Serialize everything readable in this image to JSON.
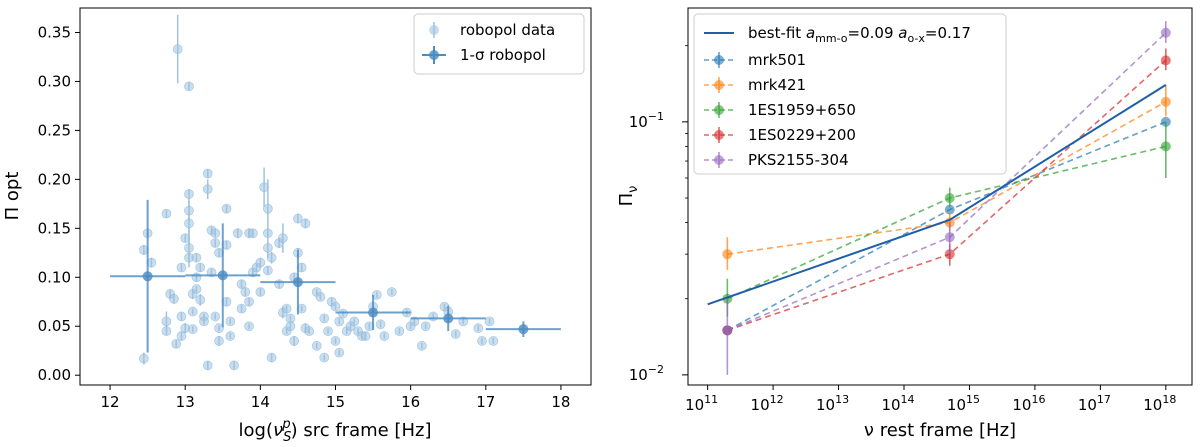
{
  "chart_data": [
    {
      "type": "scatter",
      "xlabel_main": "log(",
      "xlabel_nu": "ν",
      "xlabel_sub": "S",
      "xlabel_sup": "p",
      "xlabel_tail": ") src frame [Hz]",
      "ylabel": "Π opt",
      "xlim": [
        11.6,
        18.4
      ],
      "ylim": [
        -0.01,
        0.375
      ],
      "xticks": [
        12,
        13,
        14,
        15,
        16,
        17,
        18
      ],
      "xtick_labels": [
        "12",
        "13",
        "14",
        "15",
        "16",
        "17",
        "18"
      ],
      "yticks": [
        0.0,
        0.05,
        0.1,
        0.15,
        0.2,
        0.25,
        0.3,
        0.35
      ],
      "ytick_labels": [
        "0.00",
        "0.05",
        "0.10",
        "0.15",
        "0.20",
        "0.25",
        "0.30",
        "0.35"
      ],
      "legend": [
        {
          "label": "robopol data",
          "color": "#9fc3e0"
        },
        {
          "label": "1-σ robopol",
          "color": "#4a8bc2"
        }
      ],
      "scatter": [
        [
          12.45,
          0.017,
          0.006
        ],
        [
          12.45,
          0.128,
          0.005
        ],
        [
          12.5,
          0.145,
          0.005
        ],
        [
          12.55,
          0.115,
          0.005
        ],
        [
          12.75,
          0.165,
          0.004
        ],
        [
          12.75,
          0.055,
          0.01
        ],
        [
          12.75,
          0.045,
          0.004
        ],
        [
          12.8,
          0.083,
          0.004
        ],
        [
          12.85,
          0.078,
          0.005
        ],
        [
          12.9,
          0.333,
          0.035
        ],
        [
          12.88,
          0.032,
          0.004
        ],
        [
          12.95,
          0.11,
          0.004
        ],
        [
          12.95,
          0.06,
          0.004
        ],
        [
          12.95,
          0.04,
          0.004
        ],
        [
          13.0,
          0.048,
          0.005
        ],
        [
          13.0,
          0.14,
          0.004
        ],
        [
          13.05,
          0.295,
          0.004
        ],
        [
          13.05,
          0.185,
          0.005
        ],
        [
          13.05,
          0.168,
          0.01
        ],
        [
          13.05,
          0.155,
          0.025
        ],
        [
          13.05,
          0.13,
          0.02
        ],
        [
          13.05,
          0.12,
          0.005
        ],
        [
          13.1,
          0.083,
          0.005
        ],
        [
          13.1,
          0.065,
          0.003
        ],
        [
          13.1,
          0.047,
          0.003
        ],
        [
          13.15,
          0.12,
          0.004
        ],
        [
          13.15,
          0.1,
          0.004
        ],
        [
          13.15,
          0.088,
          0.003
        ],
        [
          13.2,
          0.11,
          0.004
        ],
        [
          13.2,
          0.077,
          0.006
        ],
        [
          13.25,
          0.06,
          0.003
        ],
        [
          13.25,
          0.055,
          0.003
        ],
        [
          13.3,
          0.206,
          0.004
        ],
        [
          13.3,
          0.19,
          0.01
        ],
        [
          13.35,
          0.148,
          0.004
        ],
        [
          13.35,
          0.105,
          0.004
        ],
        [
          13.4,
          0.145,
          0.004
        ],
        [
          13.4,
          0.135,
          0.004
        ],
        [
          13.4,
          0.06,
          0.003
        ],
        [
          13.45,
          0.125,
          0.004
        ],
        [
          13.45,
          0.048,
          0.003
        ],
        [
          13.45,
          0.035,
          0.005
        ],
        [
          13.3,
          0.01,
          0.004
        ],
        [
          13.55,
          0.17,
          0.004
        ],
        [
          13.55,
          0.133,
          0.004
        ],
        [
          13.55,
          0.075,
          0.004
        ],
        [
          13.6,
          0.055,
          0.003
        ],
        [
          13.6,
          0.04,
          0.003
        ],
        [
          13.65,
          0.01,
          0.004
        ],
        [
          13.7,
          0.145,
          0.005
        ],
        [
          13.75,
          0.093,
          0.004
        ],
        [
          13.75,
          0.068,
          0.004
        ],
        [
          13.8,
          0.085,
          0.004
        ],
        [
          13.85,
          0.075,
          0.004
        ],
        [
          13.85,
          0.05,
          0.003
        ],
        [
          13.85,
          0.145,
          0.005
        ],
        [
          13.9,
          0.105,
          0.004
        ],
        [
          13.9,
          0.145,
          0.004
        ],
        [
          13.95,
          0.11,
          0.004
        ],
        [
          14.0,
          0.085,
          0.004
        ],
        [
          14.0,
          0.115,
          0.005
        ],
        [
          14.1,
          0.145,
          0.004
        ],
        [
          14.05,
          0.192,
          0.02
        ],
        [
          14.1,
          0.17,
          0.03
        ],
        [
          14.1,
          0.107,
          0.004
        ],
        [
          14.1,
          0.13,
          0.01
        ],
        [
          14.15,
          0.12,
          0.006
        ],
        [
          14.15,
          0.018,
          0.004
        ],
        [
          14.25,
          0.135,
          0.005
        ],
        [
          14.3,
          0.14,
          0.015
        ],
        [
          14.25,
          0.093,
          0.004
        ],
        [
          14.3,
          0.064,
          0.006
        ],
        [
          14.35,
          0.068,
          0.003
        ],
        [
          14.35,
          0.045,
          0.003
        ],
        [
          14.4,
          0.058,
          0.003
        ],
        [
          14.4,
          0.05,
          0.003
        ],
        [
          14.45,
          0.1,
          0.004
        ],
        [
          14.45,
          0.035,
          0.005
        ],
        [
          14.5,
          0.16,
          0.005
        ],
        [
          14.5,
          0.125,
          0.005
        ],
        [
          14.55,
          0.11,
          0.004
        ],
        [
          14.55,
          0.068,
          0.003
        ],
        [
          14.6,
          0.155,
          0.005
        ],
        [
          14.6,
          0.048,
          0.005
        ],
        [
          14.65,
          0.045,
          0.003
        ],
        [
          14.75,
          0.03,
          0.003
        ],
        [
          14.75,
          0.085,
          0.003
        ],
        [
          14.8,
          0.08,
          0.003
        ],
        [
          14.85,
          0.058,
          0.003
        ],
        [
          14.9,
          0.045,
          0.003
        ],
        [
          14.85,
          0.018,
          0.003
        ],
        [
          14.95,
          0.075,
          0.004
        ],
        [
          15.0,
          0.07,
          0.003
        ],
        [
          15.0,
          0.035,
          0.003
        ],
        [
          15.05,
          0.023,
          0.003
        ],
        [
          15.05,
          0.055,
          0.003
        ],
        [
          15.1,
          0.063,
          0.003
        ],
        [
          15.15,
          0.045,
          0.003
        ],
        [
          15.2,
          0.05,
          0.003
        ],
        [
          15.25,
          0.055,
          0.003
        ],
        [
          15.3,
          0.045,
          0.003
        ],
        [
          15.35,
          0.04,
          0.003
        ],
        [
          15.4,
          0.04,
          0.004
        ],
        [
          15.45,
          0.05,
          0.003
        ],
        [
          15.5,
          0.07,
          0.003
        ],
        [
          15.55,
          0.082,
          0.003
        ],
        [
          15.6,
          0.052,
          0.003
        ],
        [
          15.65,
          0.04,
          0.003
        ],
        [
          15.75,
          0.085,
          0.003
        ],
        [
          15.85,
          0.045,
          0.003
        ],
        [
          15.95,
          0.064,
          0.003
        ],
        [
          16.0,
          0.05,
          0.003
        ],
        [
          16.05,
          0.055,
          0.003
        ],
        [
          16.15,
          0.03,
          0.003
        ],
        [
          16.2,
          0.05,
          0.003
        ],
        [
          16.3,
          0.06,
          0.003
        ],
        [
          16.45,
          0.07,
          0.003
        ],
        [
          16.5,
          0.065,
          0.003
        ],
        [
          16.6,
          0.042,
          0.003
        ],
        [
          16.7,
          0.055,
          0.003
        ],
        [
          16.9,
          0.048,
          0.003
        ],
        [
          16.95,
          0.035,
          0.003
        ],
        [
          17.05,
          0.055,
          0.003
        ],
        [
          17.1,
          0.035,
          0.003
        ]
      ],
      "binned": [
        {
          "x": 12.5,
          "y": 0.101,
          "xerr": 0.5,
          "yerr": 0.078
        },
        {
          "x": 13.5,
          "y": 0.102,
          "xerr": 0.5,
          "yerr": 0.053
        },
        {
          "x": 14.5,
          "y": 0.095,
          "xerr": 0.5,
          "yerr": 0.033
        },
        {
          "x": 15.5,
          "y": 0.064,
          "xerr": 0.5,
          "yerr": 0.018
        },
        {
          "x": 16.5,
          "y": 0.058,
          "xerr": 0.5,
          "yerr": 0.013
        },
        {
          "x": 17.5,
          "y": 0.047,
          "xerr": 0.5,
          "yerr": 0.008
        }
      ]
    },
    {
      "type": "line",
      "xlabel": "ν rest frame [Hz]",
      "ylabel_main": "Π",
      "ylabel_sub": "ν",
      "xscale": "log",
      "yscale": "log",
      "xlim_log": [
        10.7,
        18.4
      ],
      "ylim_log": [
        -2.04,
        -0.55
      ],
      "xticks_log": [
        11,
        12,
        13,
        14,
        15,
        16,
        17,
        18
      ],
      "xtick_base": "10",
      "xtick_exps": [
        "11",
        "12",
        "13",
        "14",
        "15",
        "16",
        "17",
        "18"
      ],
      "yticks_log": [
        -2,
        -1
      ],
      "ytick_base": "10",
      "ytick_exps": [
        "−2",
        "−1"
      ],
      "legend_fit": {
        "prefix": "best-fit ",
        "a1_main": "a",
        "a1_sub": "mm-o",
        "a1_val": "=0.09 ",
        "a2_main": "a",
        "a2_sub": "o-x",
        "a2_val": "=0.17"
      },
      "fit": {
        "color": "#1f5fa8",
        "x": [
          100000000000.0,
          500000000000000.0,
          1e+18
        ],
        "y": [
          0.019,
          0.041,
          0.14
        ]
      },
      "series": [
        {
          "name": "mrk501",
          "color": "#1f77b4",
          "x": [
            200000000000.0,
            500000000000000.0,
            1e+18
          ],
          "y": [
            0.015,
            0.045,
            0.1
          ],
          "yerr_lo": [
            0.0,
            0.0,
            0.0
          ],
          "yerr_hi": [
            0.0,
            0.0,
            0.0
          ]
        },
        {
          "name": "mrk421",
          "color": "#ff7f0e",
          "x": [
            200000000000.0,
            500000000000000.0,
            1e+18
          ],
          "y": [
            0.03,
            0.04,
            0.12
          ],
          "yerr_lo": [
            0.004,
            0.003,
            0.015
          ],
          "yerr_hi": [
            0.005,
            0.004,
            0.02
          ]
        },
        {
          "name": "1ES1959+650",
          "color": "#2ca02c",
          "x": [
            200000000000.0,
            500000000000000.0,
            1e+18
          ],
          "y": [
            0.02,
            0.05,
            0.08
          ],
          "yerr_lo": [
            0.003,
            0.004,
            0.02
          ],
          "yerr_hi": [
            0.004,
            0.005,
            0.02
          ]
        },
        {
          "name": "1ES0229+200",
          "color": "#d62728",
          "x": [
            200000000000.0,
            500000000000000.0,
            1e+18
          ],
          "y": [
            0.015,
            0.03,
            0.175
          ],
          "yerr_lo": [
            0.0,
            0.003,
            0.015
          ],
          "yerr_hi": [
            0.0,
            0.003,
            0.02
          ]
        },
        {
          "name": "PKS2155-304",
          "color": "#9467bd",
          "x": [
            200000000000.0,
            500000000000000.0,
            1e+18
          ],
          "y": [
            0.015,
            0.035,
            0.225
          ],
          "yerr_lo": [
            0.005,
            0.005,
            0.02
          ],
          "yerr_hi": [
            0.005,
            0.005,
            0.025
          ]
        }
      ]
    }
  ]
}
